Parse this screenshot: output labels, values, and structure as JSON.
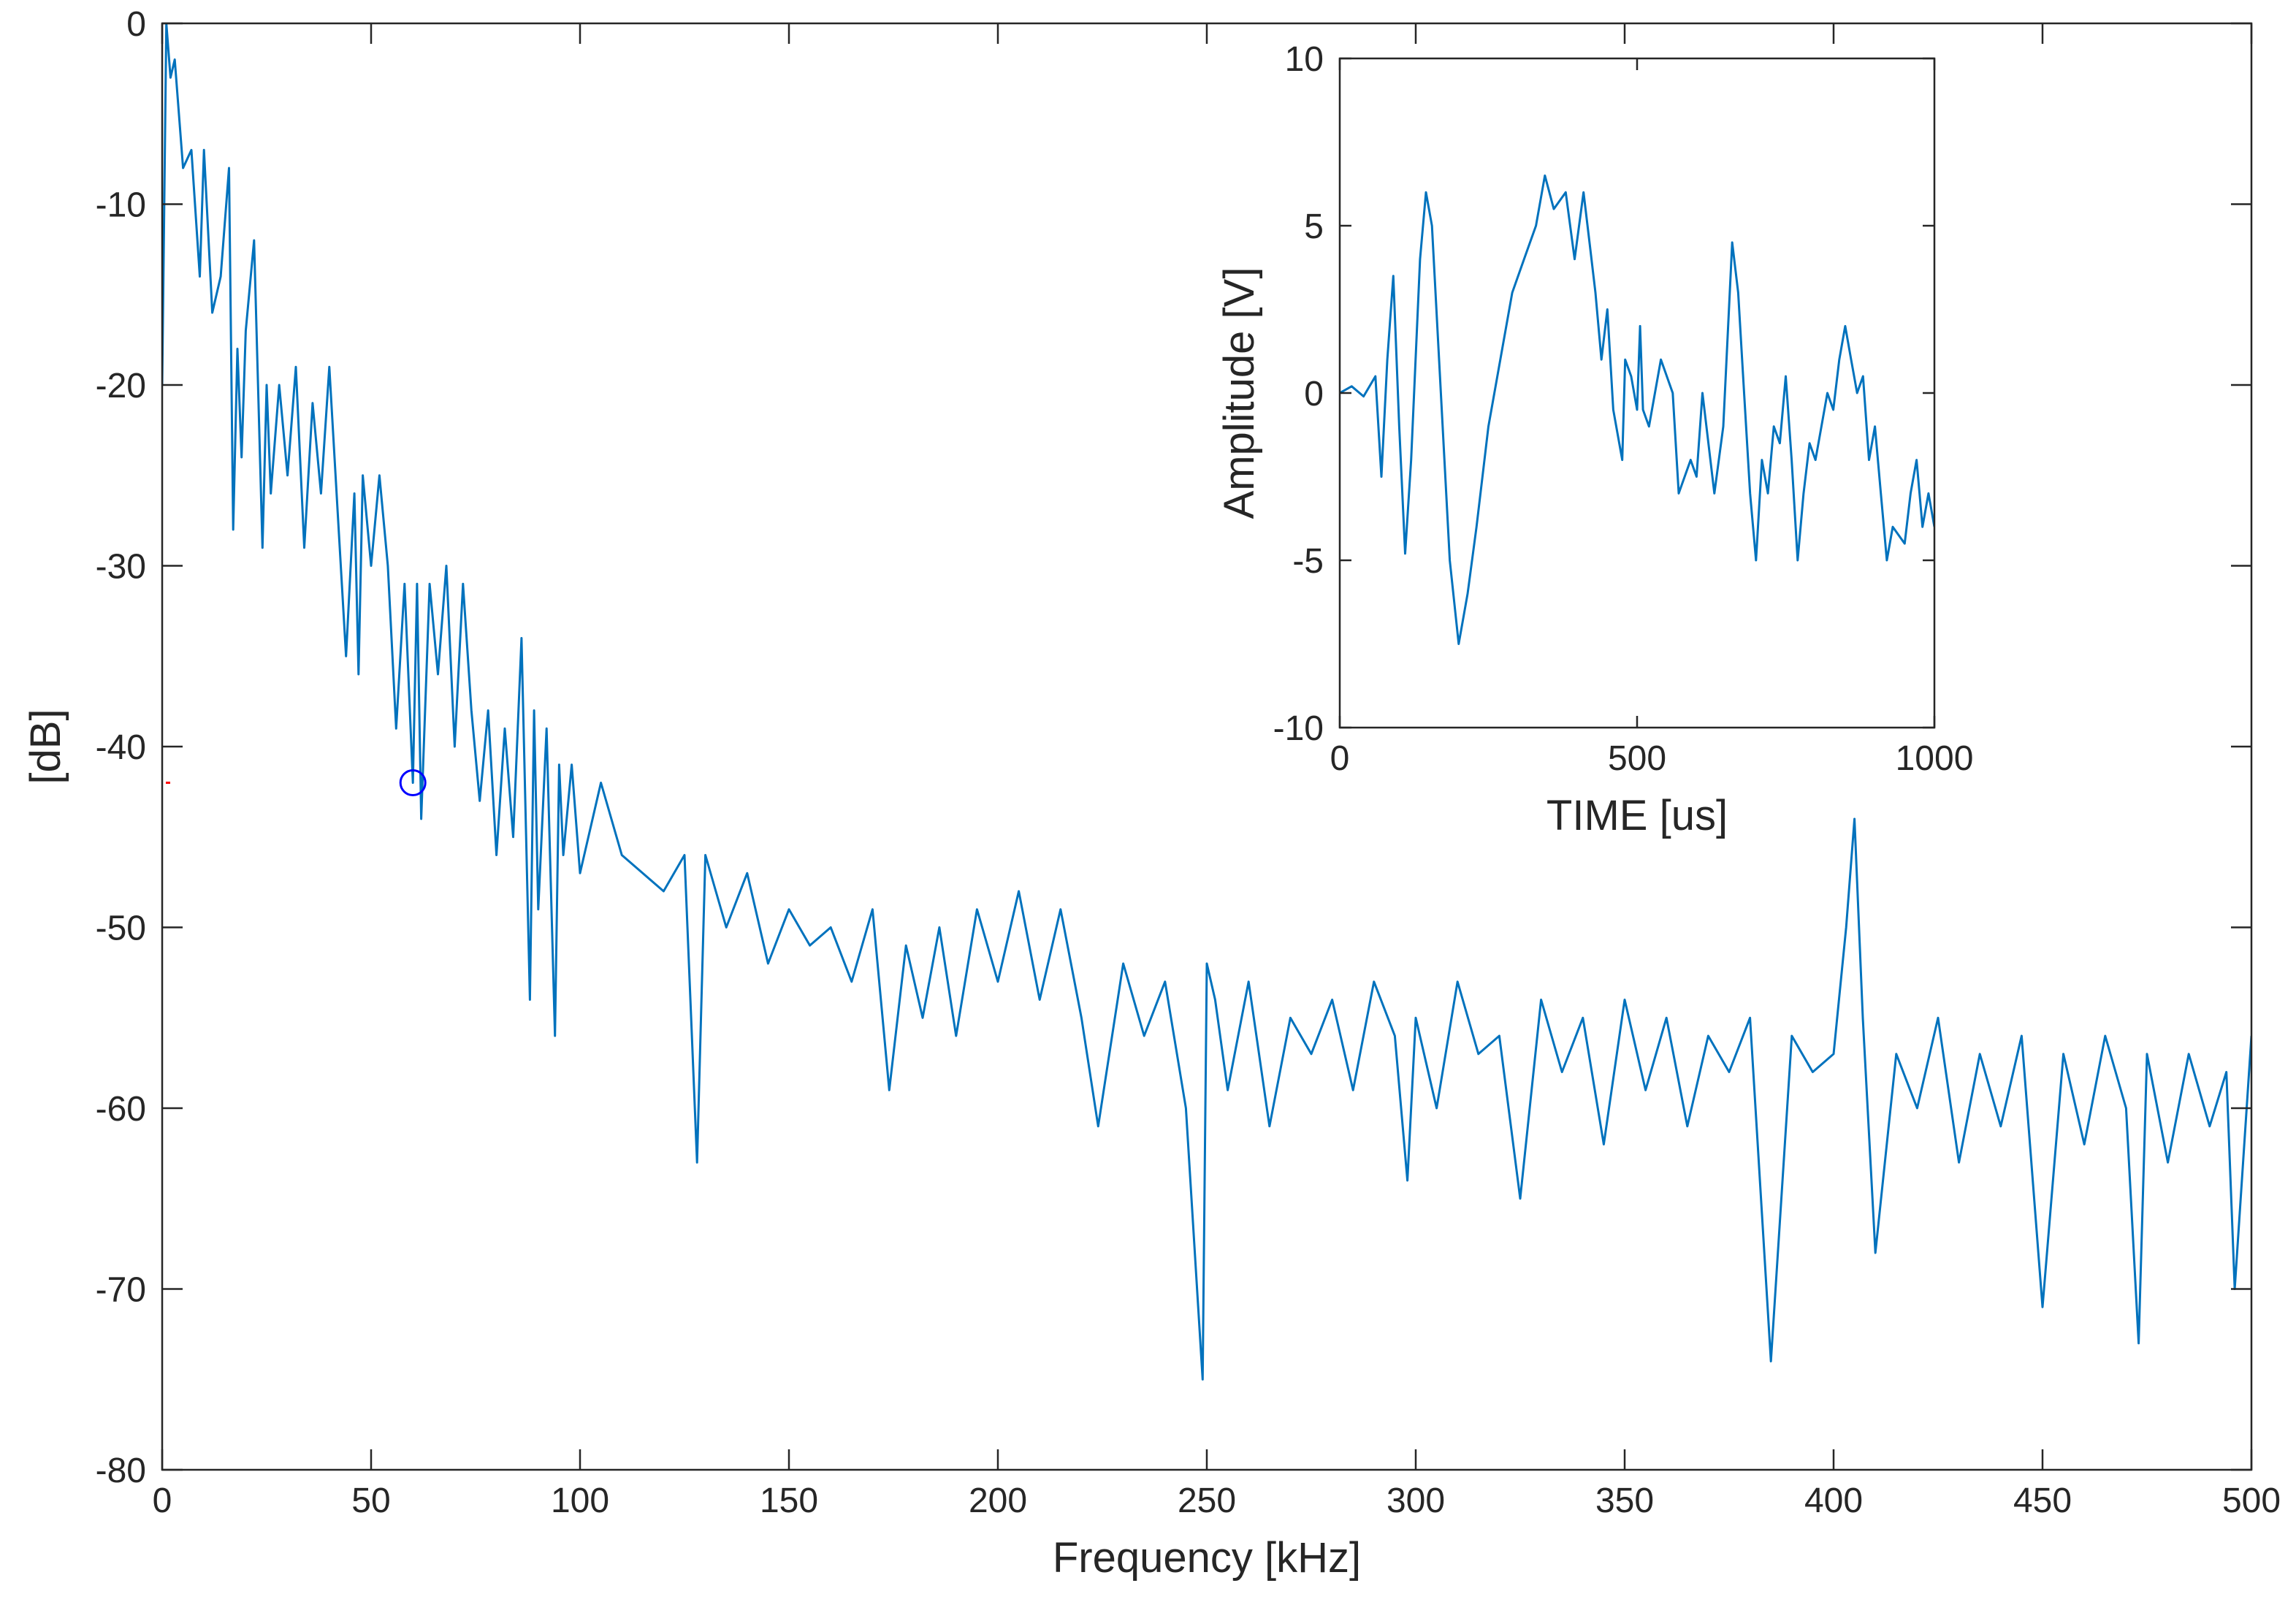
{
  "chart_data": [
    {
      "type": "line",
      "xlabel": "Frequency [kHz]",
      "ylabel": "[dB]",
      "xlim": [
        0,
        500
      ],
      "ylim": [
        -80,
        0
      ],
      "xticks": [
        0,
        50,
        100,
        150,
        200,
        250,
        300,
        350,
        400,
        450,
        500
      ],
      "yticks": [
        -80,
        -70,
        -60,
        -50,
        -40,
        -30,
        -20,
        -10,
        0
      ],
      "series": [
        {
          "color": "#0072bd",
          "marker": "none",
          "x": [
            0,
            1,
            2,
            3,
            5,
            7,
            9,
            10,
            12,
            14,
            16,
            17,
            18,
            19,
            20,
            22,
            24,
            25,
            26,
            28,
            30,
            32,
            34,
            36,
            38,
            40,
            42,
            44,
            46,
            47,
            48,
            50,
            52,
            54,
            56,
            58,
            60,
            61,
            62,
            64,
            66,
            68,
            70,
            72,
            74,
            76,
            78,
            80,
            82,
            84,
            86,
            88,
            89,
            90,
            92,
            94,
            95,
            96,
            98,
            100,
            105,
            110,
            115,
            120,
            125,
            128,
            130,
            135,
            140,
            145,
            150,
            155,
            160,
            165,
            170,
            174,
            178,
            182,
            186,
            190,
            195,
            200,
            205,
            210,
            215,
            220,
            224,
            230,
            235,
            240,
            245,
            249,
            250,
            252,
            255,
            260,
            265,
            270,
            275,
            280,
            285,
            290,
            295,
            298,
            300,
            305,
            310,
            315,
            320,
            325,
            330,
            335,
            340,
            345,
            350,
            355,
            360,
            365,
            370,
            375,
            380,
            385,
            390,
            395,
            400,
            403,
            405,
            407,
            410,
            415,
            420,
            425,
            430,
            435,
            440,
            445,
            450,
            455,
            460,
            465,
            470,
            473,
            475,
            480,
            485,
            490,
            494,
            496,
            500
          ],
          "values": [
            -20,
            0,
            -3,
            -2,
            -8,
            -7,
            -14,
            -7,
            -16,
            -14,
            -8,
            -28,
            -18,
            -24,
            -17,
            -12,
            -29,
            -20,
            -26,
            -20,
            -25,
            -19,
            -29,
            -21,
            -26,
            -19,
            -27,
            -35,
            -26,
            -36,
            -25,
            -30,
            -25,
            -30,
            -39,
            -31,
            -42,
            -31,
            -44,
            -31,
            -36,
            -30,
            -40,
            -31,
            -38,
            -43,
            -38,
            -46,
            -39,
            -45,
            -34,
            -54,
            -38,
            -49,
            -39,
            -56,
            -41,
            -46,
            -41,
            -47,
            -42,
            -46,
            -47,
            -48,
            -46,
            -63,
            -46,
            -50,
            -47,
            -52,
            -49,
            -51,
            -50,
            -53,
            -49,
            -59,
            -51,
            -55,
            -50,
            -56,
            -49,
            -53,
            -48,
            -54,
            -49,
            -55,
            -61,
            -52,
            -56,
            -53,
            -60,
            -75,
            -52,
            -54,
            -59,
            -53,
            -61,
            -55,
            -57,
            -54,
            -59,
            -53,
            -56,
            -64,
            -55,
            -60,
            -53,
            -57,
            -56,
            -65,
            -54,
            -58,
            -55,
            -62,
            -54,
            -59,
            -55,
            -61,
            -56,
            -58,
            -55,
            -74,
            -56,
            -58,
            -57,
            -50,
            -44,
            -55,
            -68,
            -57,
            -60,
            -55,
            -63,
            -57,
            -61,
            -56,
            -71,
            -57,
            -62,
            -56,
            -60,
            -73,
            -57,
            -63,
            -57,
            -61,
            -58,
            -70,
            -56
          ]
        },
        {
          "color": "#0000ff",
          "marker": "o",
          "x": [
            60
          ],
          "values": [
            -42
          ]
        },
        {
          "color": "#ff0000",
          "marker": ".",
          "x": [
            1.4
          ],
          "values": [
            -42
          ]
        }
      ]
    },
    {
      "type": "line",
      "xlabel": "TIME [us]",
      "ylabel": "Amplitude [V]",
      "xlim": [
        0,
        1000
      ],
      "ylim": [
        -10,
        10
      ],
      "xticks": [
        0,
        500,
        1000
      ],
      "yticks": [
        -10,
        -5,
        0,
        5,
        10
      ],
      "series": [
        {
          "color": "#0072bd",
          "marker": "none",
          "x": [
            0,
            20,
            40,
            60,
            70,
            80,
            90,
            100,
            110,
            120,
            135,
            145,
            155,
            170,
            185,
            200,
            215,
            230,
            250,
            270,
            290,
            310,
            330,
            345,
            360,
            380,
            395,
            410,
            420,
            430,
            440,
            450,
            460,
            475,
            480,
            490,
            500,
            505,
            510,
            520,
            540,
            560,
            570,
            590,
            600,
            610,
            630,
            645,
            660,
            670,
            680,
            690,
            700,
            710,
            720,
            730,
            740,
            750,
            760,
            770,
            780,
            790,
            800,
            820,
            830,
            840,
            850,
            860,
            870,
            880,
            890,
            900,
            910,
            920,
            930,
            950,
            960,
            970,
            980,
            990,
            1000
          ],
          "values": [
            0,
            0.2,
            -0.1,
            0.5,
            -2.5,
            1,
            3.5,
            -1,
            -4.8,
            -2,
            4,
            6,
            5,
            0,
            -5,
            -7.5,
            -6,
            -4,
            -1,
            1,
            3,
            4,
            5,
            6.5,
            5.5,
            6,
            4,
            6,
            4.5,
            3,
            1,
            2.5,
            -0.5,
            -2,
            1,
            0.5,
            -0.5,
            2,
            -0.5,
            -1,
            1,
            0,
            -3,
            -2,
            -2.5,
            0,
            -3,
            -1,
            4.5,
            3,
            0,
            -3,
            -5,
            -2,
            -3,
            -1,
            -1.5,
            0.5,
            -2,
            -5,
            -3,
            -1.5,
            -2,
            0,
            -0.5,
            1,
            2,
            1,
            0,
            0.5,
            -2,
            -1,
            -3,
            -5,
            -4,
            -4.5,
            -3,
            -2,
            -4,
            -3,
            -4
          ]
        }
      ]
    }
  ]
}
